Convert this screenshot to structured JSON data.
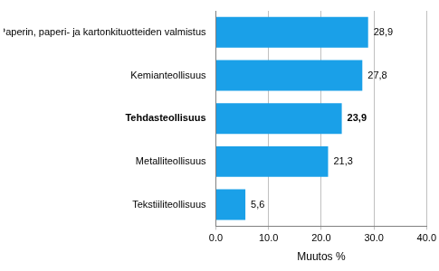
{
  "chart_data": {
    "type": "bar",
    "orientation": "horizontal",
    "categories": [
      "Paperin, paperi- ja kartonkituotteiden valmistus",
      "Kemianteollisuus",
      "Tehdasteollisuus",
      "Metalliteollisuus",
      "Tekstiiliteollisuus"
    ],
    "values": [
      28.9,
      27.8,
      23.9,
      21.3,
      5.6
    ],
    "value_labels": [
      "28,9",
      "27,8",
      "23,9",
      "21,3",
      "5,6"
    ],
    "color": "#1aa0e8",
    "xlabel": "Muutos %",
    "xlim": [
      0,
      40
    ],
    "xticks": [
      {
        "value": 0,
        "label": "0.0"
      },
      {
        "value": 10,
        "label": "10.0"
      },
      {
        "value": 20,
        "label": "20.0"
      },
      {
        "value": 30,
        "label": "30.0"
      },
      {
        "value": 40,
        "label": "40.0"
      }
    ],
    "grid": true,
    "data_labels": true
  }
}
